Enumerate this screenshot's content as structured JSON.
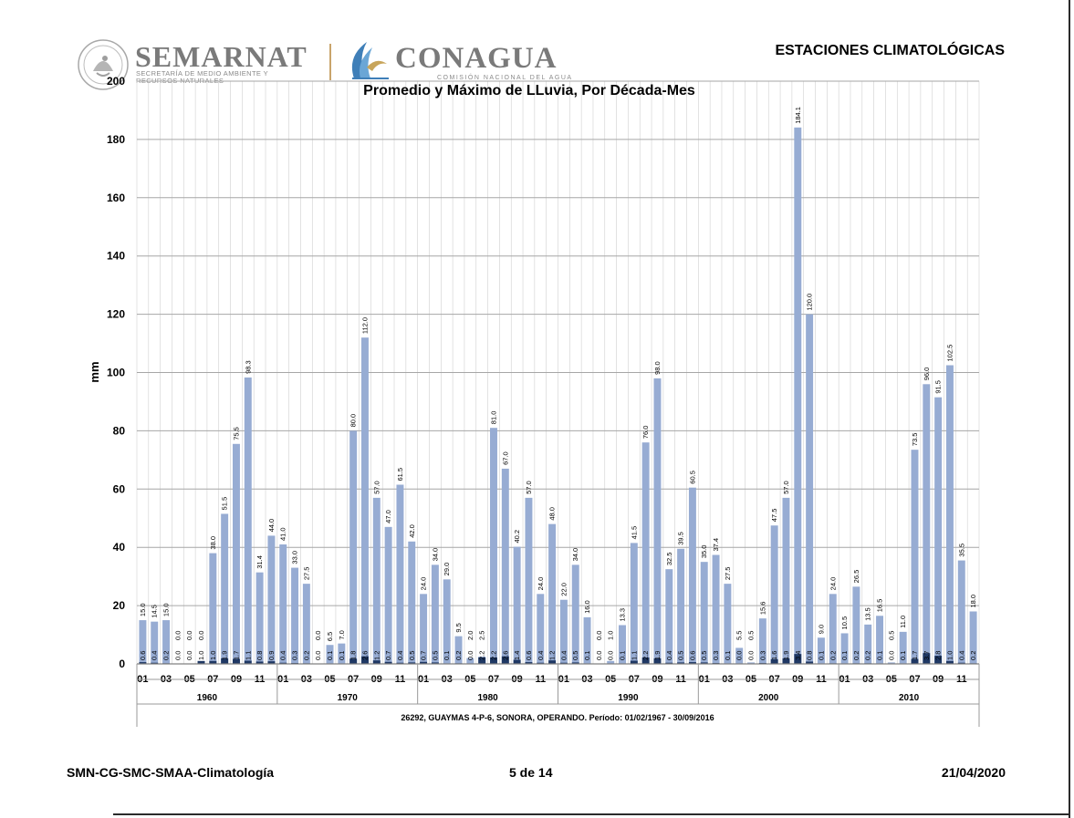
{
  "header": {
    "org_name": "SEMARNAT",
    "org_subtitle": "SECRETARÍA DE MEDIO AMBIENTE Y RECURSOS NATURALES",
    "agency_name": "CONAGUA",
    "agency_subtitle": "COMISIÓN NACIONAL DEL AGUA",
    "report_title": "ESTACIONES CLIMATOLÓGICAS"
  },
  "footer": {
    "left": "SMN-CG-SMC-SMAA-Climatología",
    "center": "5 de 14",
    "right": "21/04/2020"
  },
  "colors": {
    "max_bar": "#97acd3",
    "mean_bar": "#1f3864",
    "grid": "#a6a6a6",
    "axis": "#808080"
  },
  "chart_data": {
    "type": "bar",
    "title": "Promedio y Máximo de LLuvia, Por Década-Mes",
    "ylabel": "mm",
    "ylim": [
      0,
      200
    ],
    "yticks": [
      0,
      20,
      40,
      60,
      80,
      100,
      120,
      140,
      160,
      180,
      200
    ],
    "grid": true,
    "station_caption": "26292, GUAYMAS 4-P-6, SONORA, OPERANDO. Período: 01/02/1967 - 30/09/2016",
    "month_tick_labels": [
      "01",
      "03",
      "05",
      "07",
      "09",
      "11"
    ],
    "decades": [
      {
        "label": "1960",
        "max": [
          "15.0",
          "14.5",
          "15.0",
          "0.0",
          "0.0",
          "0.0",
          "38.0",
          "51.5",
          "75.5",
          "98.3",
          "31.4",
          "44.0"
        ],
        "mean": [
          "0.6",
          "0.4",
          "0.2",
          "0.0",
          "0.0",
          "1.0",
          "1.0",
          "1.9",
          "1.7",
          "1.1",
          "0.8",
          "0.9"
        ]
      },
      {
        "label": "1970",
        "max": [
          "41.0",
          "33.0",
          "27.5",
          "0.0",
          "6.5",
          "7.0",
          "80.0",
          "112.0",
          "57.0",
          "47.0",
          "61.5",
          "42.0"
        ],
        "mean": [
          "0.4",
          "0.3",
          "0.2",
          "0.0",
          "0.1",
          "0.1",
          "1.8",
          "2.6",
          "1.2",
          "0.7",
          "0.4",
          "0.5"
        ]
      },
      {
        "label": "1980",
        "max": [
          "24.0",
          "34.0",
          "29.0",
          "9.5",
          "2.0",
          "2.5",
          "81.0",
          "67.0",
          "40.2",
          "57.0",
          "24.0",
          "48.0"
        ],
        "mean": [
          "0.7",
          "0.5",
          "0.1",
          "0.2",
          "0.0",
          "2.2",
          "2.2",
          "2.6",
          "1.4",
          "0.6",
          "0.4",
          "1.2"
        ]
      },
      {
        "label": "1990",
        "max": [
          "22.0",
          "34.0",
          "16.0",
          "0.0",
          "1.0",
          "13.3",
          "41.5",
          "76.0",
          "98.0",
          "32.5",
          "39.5",
          "60.5"
        ],
        "mean": [
          "0.4",
          "0.5",
          "0.1",
          "0.0",
          "0.0",
          "0.1",
          "1.1",
          "2.2",
          "1.9",
          "0.4",
          "0.5",
          "0.6"
        ]
      },
      {
        "label": "2000",
        "max": [
          "35.0",
          "37.4",
          "27.5",
          "5.5",
          "0.5",
          "15.6",
          "47.5",
          "57.0",
          "184.1",
          "120.0",
          "9.0",
          "24.0"
        ],
        "mean": [
          "0.5",
          "0.3",
          "0.1",
          "0.0",
          "0.0",
          "0.3",
          "1.6",
          "1.9",
          "3.4",
          "0.8",
          "0.1",
          "0.2"
        ]
      },
      {
        "label": "2010",
        "max": [
          "10.5",
          "26.5",
          "13.5",
          "16.5",
          "0.5",
          "11.0",
          "73.5",
          "96.0",
          "91.5",
          "102.5",
          "35.5",
          "18.0"
        ],
        "mean": [
          "0.1",
          "0.2",
          "0.2",
          "0.1",
          "0.0",
          "0.1",
          "1.7",
          "3.7",
          "2.8",
          "1.0",
          "0.4",
          "0.2"
        ]
      }
    ]
  }
}
